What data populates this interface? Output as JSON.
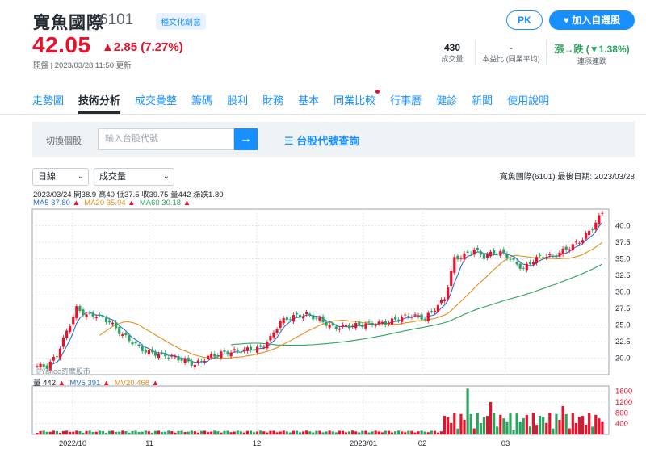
{
  "stock": {
    "name": "寬魚國際",
    "code": "6101",
    "tag": "種文化創意",
    "price": "42.05",
    "change": "▲2.85 (7.27%)",
    "status": "開盤 | 2023/03/28 11:50 更新"
  },
  "stats": [
    {
      "value": "430",
      "label": "成交量"
    },
    {
      "value": "-",
      "label": "本益比 (同業平均)"
    },
    {
      "value": "漲→跌 (▼1.38%)",
      "label": "連漲連跌"
    }
  ],
  "buttons": {
    "pk": "PK",
    "add": "加入自選股"
  },
  "tabs": [
    "走勢圖",
    "技術分析",
    "成交彙整",
    "籌碼",
    "股利",
    "財務",
    "基本",
    "同業比較",
    "行事曆",
    "健診",
    "新聞",
    "使用說明"
  ],
  "search": {
    "switch_label": "切換個股",
    "placeholder": "輸入台股代號",
    "lookup": "☰ 台股代號查詢"
  },
  "controls": {
    "period": "日線",
    "indicator": "成交量"
  },
  "chart_meta": "寬魚國際(6101)  最後日期: 2023/03/28",
  "ohlc_text": "2023/03/24 開38.9 高40 低37.5 收39.75 量442 漲跌1.80",
  "ma": {
    "ma5": "MA5 37.80",
    "ma20": "MA20 35.94",
    "ma60": "MA60 30.18"
  },
  "vol": {
    "v": "量 442",
    "mv5": "MV5 391",
    "mv20": "MV20 468"
  },
  "watermark": "©Yahoo奇摩股市",
  "colors": {
    "up": "#eb0f29",
    "down": "#2ca25f",
    "accent": "#188fff",
    "ma5": "#2e6ecf",
    "ma20": "#e88d1a",
    "ma60": "#2ca25f"
  },
  "chart_data": {
    "type": "line",
    "xlabels": [
      "2022/10",
      "11",
      "12",
      "2023/01",
      "02",
      "03"
    ],
    "price_ticks": [
      20.0,
      22.5,
      25.0,
      27.5,
      30.0,
      32.5,
      35.0,
      37.5,
      40.0
    ],
    "volume_ticks": [
      400,
      800,
      1200,
      1600
    ],
    "ylim": [
      17.5,
      42.5
    ],
    "vol_ylim": [
      0,
      1800
    ]
  }
}
